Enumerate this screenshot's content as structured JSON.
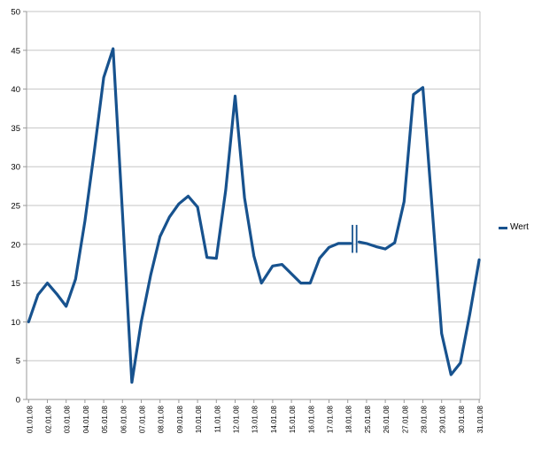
{
  "chart_data": {
    "type": "line",
    "title": "",
    "xlabel": "",
    "ylabel": "",
    "ylim": [
      0,
      50
    ],
    "ytick_step": 5,
    "grid": true,
    "legend_position": "right",
    "categories": [
      "01.01.08",
      "02.01.08",
      "03.01.08",
      "04.01.08",
      "05.01.08",
      "06.01.08",
      "07.01.08",
      "08.01.08",
      "09.01.08",
      "10.01.08",
      "11.01.08",
      "12.01.08",
      "13.01.08",
      "14.01.08",
      "15.01.08",
      "16.01.08",
      "17.01.08",
      "18.01.08",
      "25.01.08",
      "26.01.08",
      "27.01.08",
      "28.01.08",
      "29.01.08",
      "30.01.08",
      "31.01.08"
    ],
    "series": [
      {
        "name": "Wert",
        "color": "#17528e",
        "segments": [
          {
            "points": [
              [
                0,
                10
              ],
              [
                0.5,
                13.5
              ],
              [
                1,
                15
              ],
              [
                1.5,
                13.6
              ],
              [
                2,
                12
              ],
              [
                2.5,
                15.5
              ],
              [
                3,
                23
              ],
              [
                3.5,
                32
              ],
              [
                4,
                41.5
              ],
              [
                4.5,
                45.2
              ],
              [
                5,
                24
              ],
              [
                5.5,
                2.2
              ],
              [
                6,
                10
              ],
              [
                6.5,
                16
              ],
              [
                7,
                21
              ],
              [
                7.5,
                23.5
              ],
              [
                8,
                25.2
              ],
              [
                8.5,
                26.2
              ],
              [
                9,
                24.8
              ],
              [
                9.5,
                18.3
              ],
              [
                10,
                18.2
              ],
              [
                10.5,
                27
              ],
              [
                11,
                39.1
              ],
              [
                11.5,
                26
              ],
              [
                12,
                18.5
              ],
              [
                12.4,
                15
              ],
              [
                13,
                17.2
              ],
              [
                13.5,
                17.4
              ],
              [
                14,
                16.2
              ],
              [
                14.5,
                15
              ],
              [
                15,
                15
              ],
              [
                15.5,
                18.2
              ],
              [
                16,
                19.6
              ],
              [
                16.5,
                20.1
              ],
              [
                17,
                20.1
              ],
              [
                17.15,
                20.1
              ]
            ]
          },
          {
            "points": [
              [
                17.6,
                20.3
              ],
              [
                18,
                20.1
              ],
              [
                18.5,
                19.7
              ],
              [
                19,
                19.4
              ],
              [
                19.5,
                20.2
              ],
              [
                20,
                25.5
              ],
              [
                20.5,
                39.3
              ],
              [
                21,
                40.2
              ],
              [
                21.5,
                24.5
              ],
              [
                22,
                8.5
              ],
              [
                22.5,
                3.2
              ],
              [
                23,
                4.7
              ],
              [
                23.5,
                11
              ],
              [
                24,
                18
              ]
            ]
          }
        ]
      }
    ],
    "axis_break": {
      "after_category": "18.01.08",
      "before_category": "25.01.08",
      "marker_x": [
        17.25,
        17.47
      ],
      "marker_value_range": [
        18.9,
        22.5
      ]
    }
  },
  "legend": {
    "label": "Wert"
  },
  "colors": {
    "line": "#17528e",
    "grid": "#c6c6c6",
    "axis": "#9a9a9a",
    "text": "#000000",
    "background": "#ffffff"
  }
}
